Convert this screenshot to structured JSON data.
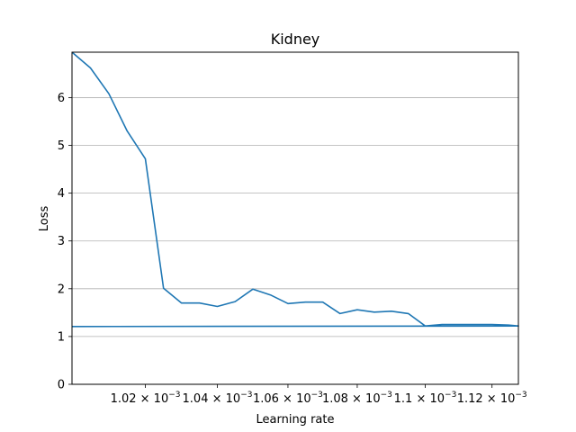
{
  "chart_data": {
    "type": "line",
    "title": "Kidney",
    "xlabel": "Learning rate",
    "ylabel": "Loss",
    "xlim": [
      0.001,
      0.001128
    ],
    "ylim": [
      0,
      6.95
    ],
    "x_scale": "log",
    "grid": "y",
    "color": "#1f77b4",
    "x_ticks": [
      0.00102,
      0.00104,
      0.00106,
      0.00108,
      0.0011,
      0.00112
    ],
    "x_tick_labels": [
      {
        "mantissa": "1.02",
        "exp": "−3"
      },
      {
        "mantissa": "1.04",
        "exp": "−3"
      },
      {
        "mantissa": "1.06",
        "exp": "−3"
      },
      {
        "mantissa": "1.08",
        "exp": "−3"
      },
      {
        "mantissa": "1.1",
        "exp": "−3"
      },
      {
        "mantissa": "1.12",
        "exp": "−3"
      }
    ],
    "y_ticks": [
      0,
      1,
      2,
      3,
      4,
      5,
      6
    ],
    "y_tick_labels": [
      "0",
      "1",
      "2",
      "3",
      "4",
      "5",
      "6"
    ],
    "series": [
      {
        "x": [
          0.001,
          0.001005,
          0.00101,
          0.001015,
          0.00102,
          0.001025,
          0.00103,
          0.001035,
          0.00104,
          0.001045,
          0.00105,
          0.001055,
          0.00106,
          0.001065,
          0.00107,
          0.001075,
          0.00108,
          0.001085,
          0.00109,
          0.001095,
          0.0011,
          0.001105,
          0.00111,
          0.001115,
          0.00112,
          0.001125,
          0.001128,
          0.001
        ],
        "y": [
          6.95,
          6.62,
          6.08,
          5.3,
          4.72,
          2.01,
          1.7,
          1.7,
          1.63,
          1.73,
          1.99,
          1.87,
          1.69,
          1.72,
          1.72,
          1.48,
          1.56,
          1.51,
          1.53,
          1.48,
          1.22,
          1.25,
          1.25,
          1.25,
          1.25,
          1.24,
          1.22,
          1.21
        ]
      }
    ]
  }
}
